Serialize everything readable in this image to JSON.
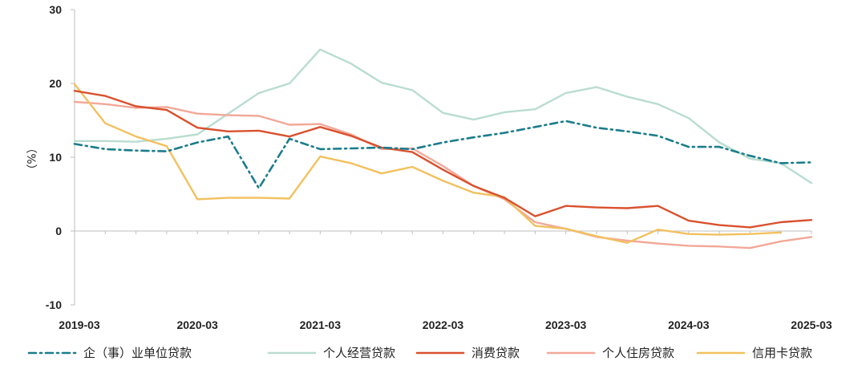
{
  "chart_data": {
    "type": "line",
    "ylabel": "（%）",
    "ylim": [
      -10,
      30
    ],
    "yticks": [
      -10,
      0,
      10,
      20,
      30
    ],
    "x_labels": [
      "2019-03",
      "2020-03",
      "2021-03",
      "2022-03",
      "2023-03",
      "2024-03",
      "2025-03"
    ],
    "x": [
      "2019-03",
      "2019-06",
      "2019-09",
      "2019-12",
      "2020-03",
      "2020-06",
      "2020-09",
      "2020-12",
      "2021-03",
      "2021-06",
      "2021-09",
      "2021-12",
      "2022-03",
      "2022-06",
      "2022-09",
      "2022-12",
      "2023-03",
      "2023-06",
      "2023-09",
      "2023-12",
      "2024-03",
      "2024-06",
      "2024-09",
      "2024-12",
      "2025-03"
    ],
    "grid": false,
    "legend_position": "bottom",
    "series": [
      {
        "name": "企（事）业单位贷款",
        "color": "#1b7d8c",
        "dash": "dashdot",
        "values": [
          11.8,
          11.1,
          10.9,
          10.8,
          12.0,
          12.8,
          5.8,
          12.5,
          11.1,
          11.2,
          11.3,
          11.1,
          12.0,
          12.7,
          13.3,
          14.1,
          14.9,
          14.0,
          13.5,
          12.9,
          11.4,
          11.4,
          10.2,
          9.2,
          9.3
        ]
      },
      {
        "name": "个人经营贷款",
        "color": "#b9ddd0",
        "dash": "solid",
        "values": [
          12.2,
          12.2,
          12.1,
          12.5,
          13.1,
          15.9,
          18.7,
          20.0,
          24.6,
          22.7,
          20.1,
          19.1,
          16.0,
          15.1,
          16.1,
          16.5,
          18.7,
          19.5,
          18.2,
          17.2,
          15.3,
          12.0,
          9.8,
          9.2,
          6.5
        ]
      },
      {
        "name": "消费贷款",
        "color": "#d9512e",
        "dash": "solid",
        "values": [
          19.0,
          18.3,
          16.9,
          16.4,
          14.0,
          13.5,
          13.6,
          12.8,
          14.1,
          12.9,
          11.3,
          10.7,
          8.3,
          6.1,
          4.5,
          2.0,
          3.4,
          3.2,
          3.1,
          3.4,
          1.4,
          0.8,
          0.5,
          1.2,
          1.5
        ]
      },
      {
        "name": "个人住房贷款",
        "color": "#f2a898",
        "dash": "solid",
        "values": [
          17.5,
          17.2,
          16.7,
          16.8,
          15.9,
          15.7,
          15.6,
          14.4,
          14.5,
          13.1,
          11.1,
          11.2,
          8.8,
          6.1,
          4.3,
          1.2,
          0.3,
          -0.8,
          -1.3,
          -1.7,
          -2.0,
          -2.1,
          -2.3,
          -1.4,
          -0.8
        ]
      },
      {
        "name": "信用卡贷款",
        "color": "#f2c15f",
        "dash": "solid",
        "values": [
          19.9,
          14.6,
          12.8,
          11.5,
          4.3,
          4.5,
          4.5,
          4.4,
          10.1,
          9.2,
          7.8,
          8.7,
          6.8,
          5.2,
          4.6,
          0.7,
          0.3,
          -0.7,
          -1.6,
          0.2,
          -0.4,
          -0.5,
          -0.4,
          -0.2,
          null
        ]
      }
    ]
  }
}
